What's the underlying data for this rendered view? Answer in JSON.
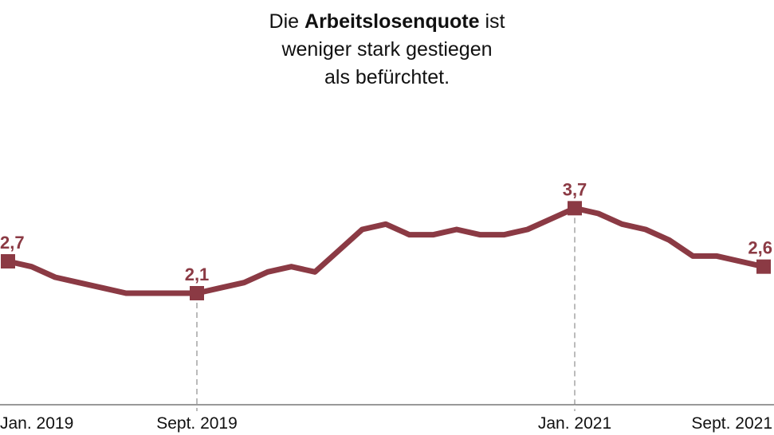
{
  "chart_data": {
    "type": "line",
    "title": [
      "Die",
      "Arbeitslosenquote",
      "ist",
      "weniger stark gestiegen",
      "als befürchtet."
    ],
    "categories": [
      "Jan. 2019",
      null,
      null,
      null,
      null,
      null,
      null,
      null,
      "Sept. 2019",
      null,
      null,
      null,
      null,
      null,
      null,
      null,
      null,
      null,
      null,
      null,
      null,
      null,
      null,
      null,
      "Jan. 2021",
      null,
      null,
      null,
      null,
      null,
      null,
      null,
      "Sept. 2021"
    ],
    "series": [
      {
        "name": "Arbeitslosenquote",
        "color": "#8b3a44",
        "values": [
          2.7,
          2.6,
          2.4,
          2.3,
          2.2,
          2.1,
          2.1,
          2.1,
          2.1,
          2.2,
          2.3,
          2.5,
          2.6,
          2.5,
          2.9,
          3.3,
          3.4,
          3.2,
          3.2,
          3.3,
          3.2,
          3.2,
          3.3,
          3.5,
          3.7,
          3.6,
          3.4,
          3.3,
          3.1,
          2.8,
          2.8,
          2.7,
          2.6
        ],
        "value_labels": [
          "2,7",
          null,
          null,
          null,
          null,
          null,
          null,
          null,
          "2,1",
          null,
          null,
          null,
          null,
          null,
          null,
          null,
          null,
          null,
          null,
          null,
          null,
          null,
          null,
          null,
          "3,7",
          null,
          null,
          null,
          null,
          null,
          null,
          null,
          "2,6"
        ]
      }
    ],
    "ylim": [
      0,
      4.2
    ]
  }
}
